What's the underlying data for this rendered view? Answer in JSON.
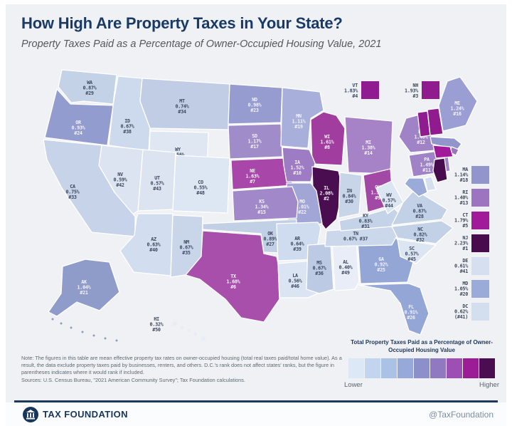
{
  "header": {
    "title": "How High Are Property Taxes in Your State?",
    "subtitle": "Property Taxes Paid as a Percentage of Owner-Occupied Housing Value, 2021"
  },
  "chart_data": {
    "type": "choropleth",
    "region": "United States",
    "unit": "% of owner-occupied housing value",
    "states": [
      {
        "abbr": "WA",
        "value": "0.87%",
        "rank": "#29",
        "fill": "#c4d2e7",
        "text": "dark"
      },
      {
        "abbr": "OR",
        "value": "0.93%",
        "rank": "#24",
        "fill": "#939cce",
        "text": "light"
      },
      {
        "abbr": "ID",
        "value": "0.67%",
        "rank": "#38",
        "fill": "#cdd9ec",
        "text": "dark"
      },
      {
        "abbr": "MT",
        "value": "0.74%",
        "rank": "#34",
        "fill": "#c0cde5",
        "text": "dark"
      },
      {
        "abbr": "WY",
        "value": "0.56%",
        "rank": "#47",
        "fill": "#dfe7f3",
        "text": "dark"
      },
      {
        "abbr": "NV",
        "value": "0.59%",
        "rank": "#42",
        "fill": "#dce4f1",
        "text": "dark"
      },
      {
        "abbr": "UT",
        "value": "0.57%",
        "rank": "#43",
        "fill": "#dce4f1",
        "text": "dark"
      },
      {
        "abbr": "CA",
        "value": "0.75%",
        "rank": "#33",
        "fill": "#c6d3e8",
        "text": "dark"
      },
      {
        "abbr": "CO",
        "value": "0.55%",
        "rank": "#48",
        "fill": "#dde6f3",
        "text": "dark"
      },
      {
        "abbr": "AZ",
        "value": "0.63%",
        "rank": "#40",
        "fill": "#d2ddef",
        "text": "dark"
      },
      {
        "abbr": "NM",
        "value": "0.67%",
        "rank": "#35",
        "fill": "#c9d6ea",
        "text": "dark"
      },
      {
        "abbr": "ND",
        "value": "0.98%",
        "rank": "#23",
        "fill": "#969ccf",
        "text": "light"
      },
      {
        "abbr": "SD",
        "value": "1.17%",
        "rank": "#17",
        "fill": "#a08cc8",
        "text": "light"
      },
      {
        "abbr": "MN",
        "value": "1.11%",
        "rank": "#19",
        "fill": "#a8afda",
        "text": "light"
      },
      {
        "abbr": "WI",
        "value": "1.61%",
        "rank": "#8",
        "fill": "#a23da0",
        "text": "light"
      },
      {
        "abbr": "MI",
        "value": "1.38%",
        "rank": "#14",
        "fill": "#a583c6",
        "text": "light"
      },
      {
        "abbr": "NE",
        "value": "1.63%",
        "rank": "#7",
        "fill": "#a847a9",
        "text": "light"
      },
      {
        "abbr": "IA",
        "value": "1.52%",
        "rank": "#10",
        "fill": "#9d7cc3",
        "text": "light"
      },
      {
        "abbr": "IL",
        "value": "2.08%",
        "rank": "#2",
        "fill": "#4a0d50",
        "text": "light"
      },
      {
        "abbr": "IN",
        "value": "0.84%",
        "rank": "#30",
        "fill": "#c8d5e9",
        "text": "dark"
      },
      {
        "abbr": "OH",
        "value": "1.59%",
        "rank": "#9",
        "fill": "#a248a5",
        "text": "light"
      },
      {
        "abbr": "MO",
        "value": "1.01%",
        "rank": "#22",
        "fill": "#a2a6d6",
        "text": "light"
      },
      {
        "abbr": "KS",
        "value": "1.34%",
        "rank": "#15",
        "fill": "#a189c9",
        "text": "light"
      },
      {
        "abbr": "OK",
        "value": "0.89%",
        "rank": "#27",
        "fill": "#c2d0e6",
        "text": "dark"
      },
      {
        "abbr": "AR",
        "value": "0.64%",
        "rank": "#39",
        "fill": "#cfdbee",
        "text": "dark"
      },
      {
        "abbr": "TX",
        "value": "1.68%",
        "rank": "#6",
        "fill": "#a84fab",
        "text": "light"
      },
      {
        "abbr": "LA",
        "value": "0.56%",
        "rank": "#46",
        "fill": "#dbe4f2",
        "text": "dark"
      },
      {
        "abbr": "MS",
        "value": "0.67%",
        "rank": "#36",
        "fill": "#bccae3",
        "text": "dark"
      },
      {
        "abbr": "AL",
        "value": "0.40%",
        "rank": "#49",
        "fill": "#e9edf7",
        "text": "dark"
      },
      {
        "abbr": "GA",
        "value": "0.92%",
        "rank": "#25",
        "fill": "#93a6d6",
        "text": "light"
      },
      {
        "abbr": "FL",
        "value": "0.91%",
        "rank": "#26",
        "fill": "#93a6d6",
        "text": "light"
      },
      {
        "abbr": "TN",
        "value": "0.67%",
        "rank": "#37",
        "fill": "#cbd7eb",
        "text": "dark"
      },
      {
        "abbr": "KY",
        "value": "0.83%",
        "rank": "#31",
        "fill": "#c5d3e8",
        "text": "dark"
      },
      {
        "abbr": "WV",
        "value": "0.57%",
        "rank": "#44",
        "fill": "#dce5f2",
        "text": "dark"
      },
      {
        "abbr": "VA",
        "value": "0.87%",
        "rank": "#28",
        "fill": "#c3d1e7",
        "text": "dark"
      },
      {
        "abbr": "NC",
        "value": "0.82%",
        "rank": "#32",
        "fill": "#c3d1e7",
        "text": "dark"
      },
      {
        "abbr": "SC",
        "value": "0.57%",
        "rank": "#45",
        "fill": "#dce5f2",
        "text": "dark"
      },
      {
        "abbr": "NY",
        "value": "1.40%",
        "rank": "#12",
        "fill": "#9f83c6",
        "text": "light"
      },
      {
        "abbr": "PA",
        "value": "1.49%",
        "rank": "#11",
        "fill": "#9f83c6",
        "text": "light"
      },
      {
        "abbr": "ME",
        "value": "1.24%",
        "rank": "#16",
        "fill": "#9b9ed2",
        "text": "light"
      },
      {
        "abbr": "VT",
        "value": "1.83%",
        "rank": "#4",
        "fill": "#901b90",
        "text": "dark"
      },
      {
        "abbr": "NH",
        "value": "1.93%",
        "rank": "#3",
        "fill": "#8f1b8f",
        "text": "dark"
      },
      {
        "abbr": "MA",
        "value": "1.14%",
        "rank": "#18",
        "fill": "#9295cc",
        "text": "dark"
      },
      {
        "abbr": "RI",
        "value": "1.40%",
        "rank": "#13",
        "fill": "#9d74bf",
        "text": "dark"
      },
      {
        "abbr": "CT",
        "value": "1.79%",
        "rank": "#5",
        "fill": "#a01a99",
        "text": "dark"
      },
      {
        "abbr": "NJ",
        "value": "2.23%",
        "rank": "#1",
        "fill": "#470b4e",
        "text": "dark"
      },
      {
        "abbr": "DE",
        "value": "0.61%",
        "rank": "#41",
        "fill": "#d5dff0",
        "text": "dark"
      },
      {
        "abbr": "MD",
        "value": "1.05%",
        "rank": "#20",
        "fill": "#9aaad9",
        "text": "dark"
      },
      {
        "abbr": "DC",
        "value": "0.62%",
        "rank": "(#41)",
        "fill": "#d3deee",
        "text": "dark"
      },
      {
        "abbr": "AK",
        "value": "1.04%",
        "rank": "#21",
        "fill": "#8f9cca",
        "text": "light"
      },
      {
        "abbr": "HI",
        "value": "0.32%",
        "rank": "#50",
        "fill": "#e7ecf7",
        "text": "dark"
      }
    ]
  },
  "legend": {
    "title": "Total Property Taxes Paid as a Percentage of Owner-Occupied Housing Value",
    "low_label": "Lower",
    "high_label": "Higher",
    "colors": [
      "#dce8f6",
      "#c3d5ee",
      "#abc2e4",
      "#96a9d9",
      "#8b90cb",
      "#9179c1",
      "#9c50b4",
      "#9c1c97",
      "#4a0e50"
    ]
  },
  "note": {
    "text": "Note: The figures in this table are mean effective property tax rates on owner-occupied housing (total real taxes paid/total home value). As a result, the data exclude property taxes paid by businesses, renters, and others. D.C.'s rank does not affect states' ranks, but the figure in parentheses indicates where it would rank if included.",
    "sources": "Sources: U.S. Census Bureau, \"2021 American Community Survey\"; Tax Foundation calculations."
  },
  "footer": {
    "brand": "TAX FOUNDATION",
    "handle": "@TaxFoundation",
    "logo_icon": "capitol-building-icon"
  },
  "colors": {
    "title_navy": "#1a3a66",
    "background": "#eff1f4",
    "footer_line": "#1b3a5c",
    "label_dark": "#3d4960",
    "label_light": "#f4f2f9"
  }
}
